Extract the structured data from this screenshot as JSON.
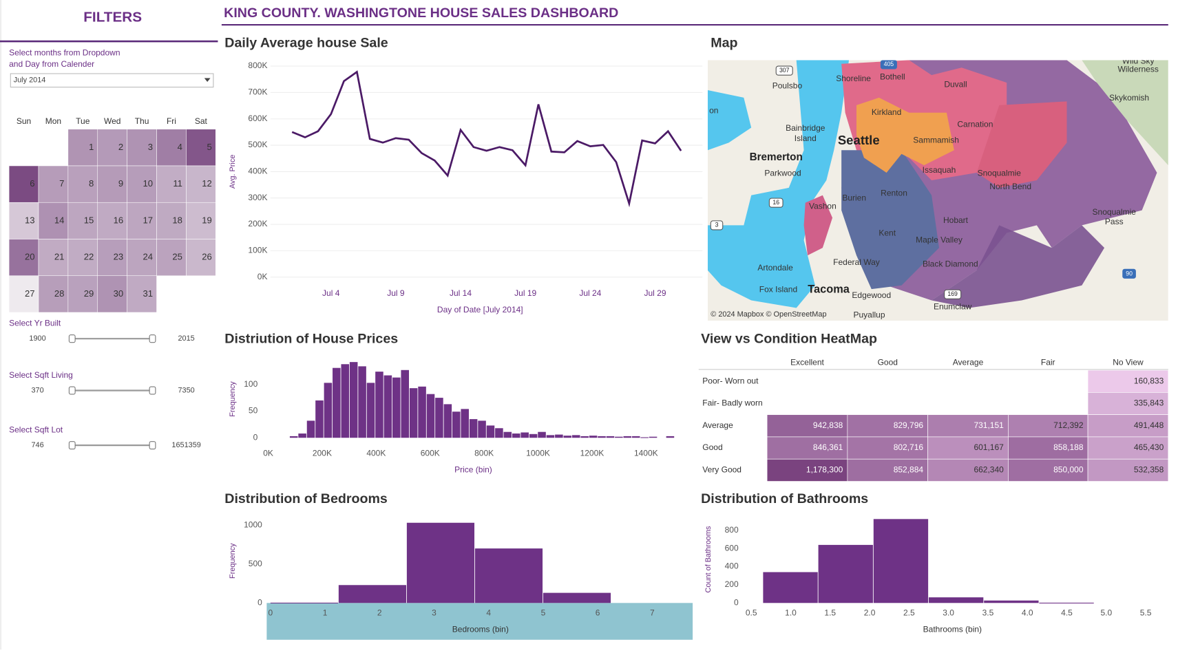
{
  "header": {
    "title": "KING COUNTY. WASHINGTONE HOUSE SALES DASHBOARD"
  },
  "filters": {
    "title": "FILTERS",
    "instruction": [
      "Select months from Dropdown",
      "and Day from Calender"
    ],
    "dropdown": "July 2014",
    "sliders": [
      {
        "label": "Select Yr Built",
        "min": 1900,
        "max": 2015
      },
      {
        "label": "Select Sqft Living",
        "min": 370,
        "max": 7350
      },
      {
        "label": "Select Sqft Lot",
        "min": 746,
        "max": 1651359
      }
    ]
  },
  "calendar": {
    "weekdays": [
      "Sun",
      "Mon",
      "Tue",
      "Wed",
      "Thu",
      "Fri",
      "Sat"
    ],
    "weeks": [
      [
        null,
        null,
        1,
        2,
        3,
        4,
        5
      ],
      [
        6,
        7,
        8,
        9,
        10,
        11,
        12
      ],
      [
        13,
        14,
        15,
        16,
        17,
        18,
        19
      ],
      [
        20,
        21,
        22,
        23,
        24,
        25,
        26
      ],
      [
        27,
        28,
        29,
        30,
        31,
        null,
        null
      ]
    ]
  },
  "map": {
    "title": "Map",
    "labels": [
      "Poulsbo",
      "Bainbridge",
      "Island",
      "Seattle",
      "Bremerton",
      "Parkwood",
      "Vashon",
      "Burien",
      "Renton",
      "Kent",
      "Maple Valley",
      "Federal Way",
      "Black Diamond",
      "Artondale",
      "Fox Island",
      "Tacoma",
      "Edgewood",
      "Puyallup",
      "Enumclaw",
      "Skykomish",
      "Wild Sky",
      "Wilderness",
      "Snoqualmie",
      "Pass",
      "Carnation",
      "Duvall",
      "Sammamish",
      "Issaquah",
      "Snoqualmie",
      "North Bend",
      "Hobart",
      "Shoreline",
      "Bothell",
      "Kirkland",
      "on"
    ],
    "shields": [
      "307",
      "405",
      "16",
      "3",
      "169",
      "90"
    ],
    "attribution": "© 2024 Mapbox © OpenStreetMap"
  },
  "heatmap": {
    "title": "View vs Condition HeatMap",
    "columns": [
      "Excellent",
      "Good",
      "Average",
      "Fair",
      "No View"
    ],
    "rows": [
      {
        "label": "Poor- Worn out",
        "cells": [
          null,
          null,
          null,
          null,
          "160,833"
        ]
      },
      {
        "label": "Fair- Badly worn",
        "cells": [
          null,
          null,
          null,
          null,
          "335,843"
        ]
      },
      {
        "label": "Average",
        "cells": [
          "942,838",
          "829,796",
          "731,151",
          "712,392",
          "491,448"
        ]
      },
      {
        "label": "Good",
        "cells": [
          "846,361",
          "802,716",
          "601,167",
          "858,188",
          "465,430"
        ]
      },
      {
        "label": "Very Good",
        "cells": [
          "1,178,300",
          "852,884",
          "662,340",
          "850,000",
          "532,358"
        ]
      }
    ]
  },
  "chart_data": [
    {
      "type": "line",
      "title": "Daily Average house Sale",
      "ylabel": "Avg. Price",
      "xlabel": "Day of Date [July 2014]",
      "color": "#4b1a66",
      "grid": true,
      "x": [
        "2014-07-01",
        "2014-07-02",
        "2014-07-03",
        "2014-07-04",
        "2014-07-05",
        "2014-07-06",
        "2014-07-07",
        "2014-07-08",
        "2014-07-09",
        "2014-07-10",
        "2014-07-11",
        "2014-07-12",
        "2014-07-13",
        "2014-07-14",
        "2014-07-15",
        "2014-07-16",
        "2014-07-17",
        "2014-07-18",
        "2014-07-19",
        "2014-07-20",
        "2014-07-21",
        "2014-07-22",
        "2014-07-23",
        "2014-07-24",
        "2014-07-25",
        "2014-07-26",
        "2014-07-27",
        "2014-07-28",
        "2014-07-29",
        "2014-07-30",
        "2014-07-31"
      ],
      "values": [
        550000,
        530000,
        553000,
        618000,
        743000,
        778000,
        524000,
        510000,
        527000,
        521000,
        470000,
        442000,
        385000,
        558000,
        493000,
        479000,
        493000,
        481000,
        424000,
        655000,
        476000,
        473000,
        516000,
        496000,
        501000,
        436000,
        279000,
        518000,
        507000,
        553000,
        479000
      ],
      "xlim": [
        "2014-06-28",
        "2014-08-02"
      ],
      "xticks": [
        {
          "value": "2014-07-04",
          "label": "Jul 4"
        },
        {
          "value": "2014-07-09",
          "label": "Jul 9"
        },
        {
          "value": "2014-07-14",
          "label": "Jul 14"
        },
        {
          "value": "2014-07-19",
          "label": "Jul 19"
        },
        {
          "value": "2014-07-24",
          "label": "Jul 24"
        },
        {
          "value": "2014-07-29",
          "label": "Jul 29"
        }
      ],
      "ylim": [
        0,
        800000
      ],
      "yticks": [
        {
          "value": 0,
          "label": "0K"
        },
        {
          "value": 100000,
          "label": "100K"
        },
        {
          "value": 200000,
          "label": "200K"
        },
        {
          "value": 300000,
          "label": "300K"
        },
        {
          "value": 400000,
          "label": "400K"
        },
        {
          "value": 500000,
          "label": "500K"
        },
        {
          "value": 600000,
          "label": "600K"
        },
        {
          "value": 700000,
          "label": "700K"
        },
        {
          "value": 800000,
          "label": "800K"
        }
      ]
    },
    {
      "type": "histogram",
      "title": "Distriution of House Prices",
      "xlabel": "Price (bin)",
      "ylabel": "Frequency",
      "color": "#6e3286",
      "grid": false,
      "bins": [
        80000,
        111700,
        143400,
        175100,
        206800,
        238500,
        270200,
        301900,
        333600,
        365300,
        397000,
        428700,
        460400,
        492100,
        523800,
        555500,
        587200,
        618900,
        650600,
        682300,
        714000,
        745700,
        777400,
        809100,
        840800,
        872500,
        904200,
        935900,
        967600,
        999300,
        1031000,
        1062700,
        1094400,
        1126100,
        1157800,
        1189500,
        1221200,
        1252900,
        1284600,
        1316300,
        1348000,
        1379700,
        1411400,
        1443100,
        1474800,
        1506500
      ],
      "values": [
        3,
        8,
        32,
        70,
        103,
        131,
        138,
        142,
        134,
        103,
        124,
        117,
        113,
        127,
        93,
        96,
        82,
        75,
        63,
        49,
        54,
        35,
        32,
        23,
        18,
        11,
        8,
        10,
        7,
        11,
        5,
        6,
        4,
        5,
        3,
        4,
        3,
        3,
        2,
        3,
        3,
        1,
        2,
        0,
        3
      ],
      "xlim": [
        0,
        1520000
      ],
      "xticks": [
        {
          "value": 0,
          "label": "0K"
        },
        {
          "value": 200000,
          "label": "200K"
        },
        {
          "value": 400000,
          "label": "400K"
        },
        {
          "value": 600000,
          "label": "600K"
        },
        {
          "value": 800000,
          "label": "800K"
        },
        {
          "value": 1000000,
          "label": "1000K"
        },
        {
          "value": 1200000,
          "label": "1200K"
        },
        {
          "value": 1400000,
          "label": "1400K"
        }
      ],
      "ylim": [
        0,
        145
      ],
      "yticks": [
        0,
        50,
        100
      ]
    },
    {
      "type": "histogram",
      "title": "Distribution of Bedrooms",
      "xlabel": "Bedrooms (bin)",
      "ylabel": "Frequency",
      "color": "#6e3286",
      "grid": false,
      "x_axis_band_color": "#8fc4d0",
      "bins": [
        0,
        1.25,
        2.5,
        3.75,
        5,
        6.25
      ],
      "values": [
        4,
        230,
        1030,
        700,
        130
      ],
      "xlim": [
        0,
        7.7
      ],
      "xticks": [
        0,
        1,
        2,
        3,
        4,
        5,
        6,
        7
      ],
      "ylim": [
        0,
        1080
      ],
      "yticks": [
        0,
        500,
        1000
      ]
    },
    {
      "type": "histogram",
      "title": "Distribution of Bathrooms",
      "xlabel": "Bathrooms (bin)",
      "ylabel": "Count of Bathrooms",
      "color": "#6e3286",
      "grid": false,
      "bins": [
        0.65,
        1.35,
        2.05,
        2.75,
        3.45,
        4.15,
        4.85
      ],
      "values": [
        340,
        640,
        925,
        62,
        27,
        3
      ],
      "xlim": [
        0.4,
        5.7
      ],
      "xticks": [
        0.5,
        {
          "value": 1,
          "label": "1.0"
        },
        1.5,
        {
          "value": 2,
          "label": "2.0"
        },
        2.5,
        {
          "value": 3,
          "label": "3.0"
        },
        3.5,
        {
          "value": 4,
          "label": "4.0"
        },
        4.5,
        {
          "value": 5,
          "label": "5.0"
        },
        5.5
      ],
      "ylim": [
        0,
        960
      ],
      "yticks": [
        0,
        200,
        400,
        600,
        800
      ]
    }
  ]
}
